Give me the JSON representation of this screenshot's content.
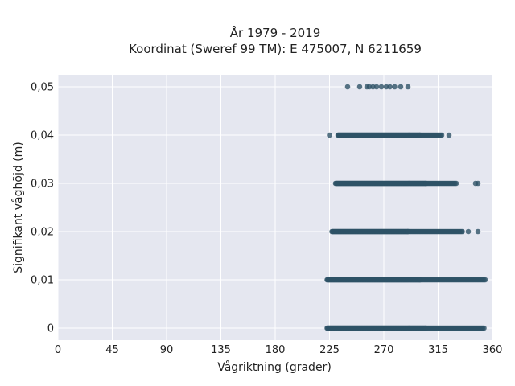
{
  "chart_data": {
    "type": "scatter",
    "title_line1": "År 1979 - 2019",
    "title_line2": "Koordinat (Sweref 99 TM): E 475007, N 6211659",
    "xlabel": "Vågriktning (grader)",
    "ylabel": "Signifikant våghöjd (m)",
    "xlim": [
      0,
      360
    ],
    "ylim": [
      -0.0025,
      0.0525
    ],
    "xticks": [
      0,
      45,
      90,
      135,
      180,
      225,
      270,
      315,
      360
    ],
    "xtick_labels": [
      "0",
      "45",
      "90",
      "135",
      "180",
      "225",
      "270",
      "315",
      "360"
    ],
    "yticks": [
      0,
      0.01,
      0.02,
      0.03,
      0.04,
      0.05
    ],
    "ytick_labels": [
      "0",
      "0,01",
      "0,02",
      "0,03",
      "0,04",
      "0,05"
    ],
    "grid": true,
    "colors": {
      "background": "#e5e7f0",
      "grid": "#ffffff",
      "point": "#2e5266"
    },
    "bands": [
      {
        "y": 0.05,
        "x": [
          240,
          250,
          256,
          258,
          261,
          264,
          268,
          272,
          275,
          279,
          284,
          290
        ]
      },
      {
        "y": 0.04,
        "dense_from": 232,
        "dense_to": 300,
        "sparse_to": 318,
        "outliers": [
          225,
          324
        ]
      },
      {
        "y": 0.03,
        "dense_from": 230,
        "dense_to": 305,
        "sparse_to": 330,
        "outliers": [
          346,
          348
        ]
      },
      {
        "y": 0.02,
        "dense_from": 227,
        "dense_to": 290,
        "sparse_to": 335,
        "outliers": [
          340,
          348
        ]
      },
      {
        "y": 0.01,
        "dense_from": 223,
        "dense_to": 300,
        "sparse_to": 354,
        "outliers": []
      },
      {
        "y": 0.0,
        "dense_from": 223,
        "dense_to": 305,
        "sparse_to": 353,
        "outliers": []
      }
    ]
  }
}
